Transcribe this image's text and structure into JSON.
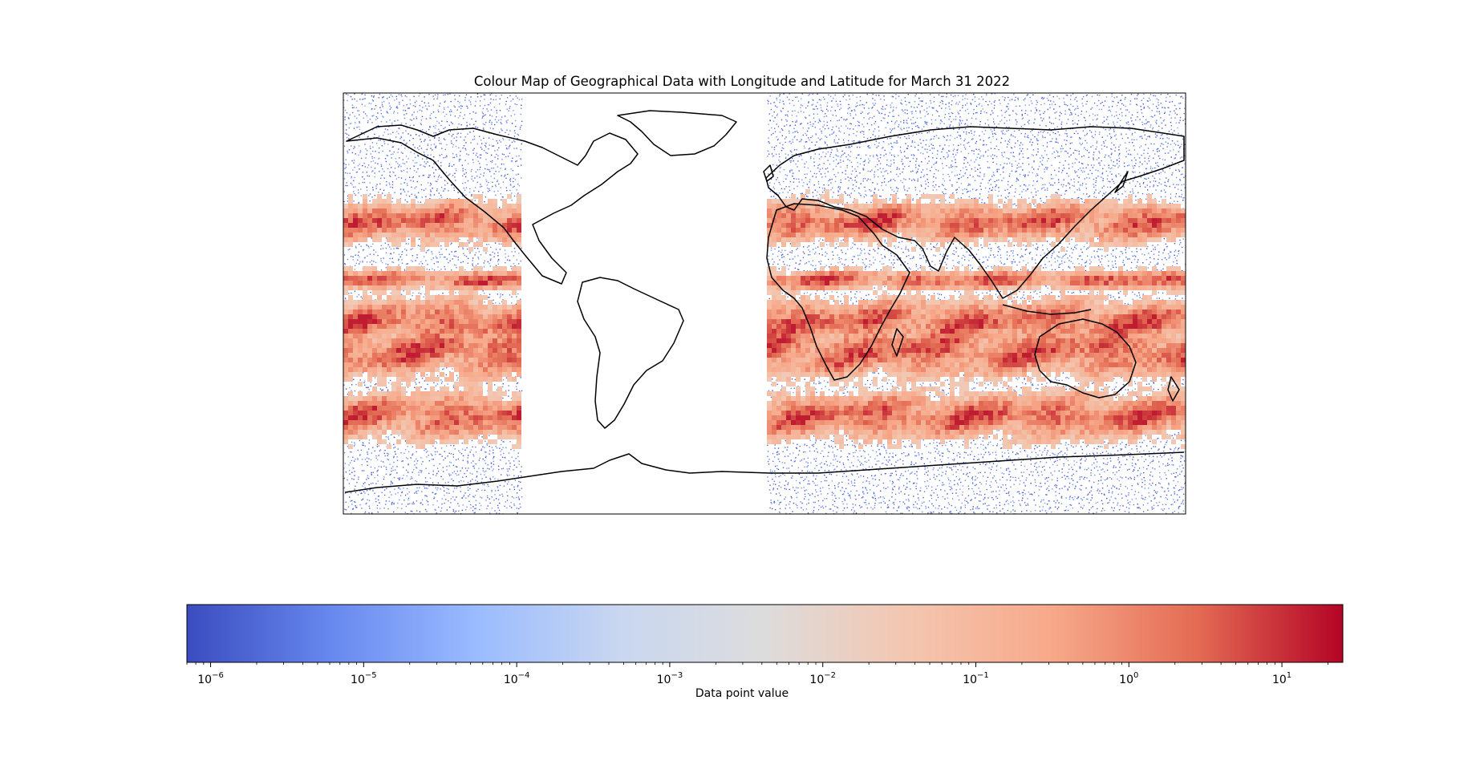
{
  "title": "Colour Map of Geographical Data with Longitude and Latitude for March 31 2022",
  "chart_data": {
    "type": "heatmap",
    "projection": "equirectangular",
    "title": "Colour Map of Geographical Data with Longitude and Latitude for March 31 2022",
    "lon_range": [
      -180,
      180
    ],
    "lat_range": [
      -90,
      90
    ],
    "no_data_lon_range": [
      -104,
      0
    ],
    "colormap": "coolwarm",
    "color_scale": "log",
    "colorbar": {
      "label": "Data point value",
      "range": [
        7e-07,
        25
      ],
      "ticks": [
        {
          "base": "10",
          "exp": "−6",
          "value": 1e-06
        },
        {
          "base": "10",
          "exp": "−5",
          "value": 1e-05
        },
        {
          "base": "10",
          "exp": "−4",
          "value": 0.0001
        },
        {
          "base": "10",
          "exp": "−3",
          "value": 0.001
        },
        {
          "base": "10",
          "exp": "−2",
          "value": 0.01
        },
        {
          "base": "10",
          "exp": "−1",
          "value": 0.1
        },
        {
          "base": "10",
          "exp": "0",
          "value": 1
        },
        {
          "base": "10",
          "exp": "1",
          "value": 10
        }
      ],
      "colors": [
        "#3b4cc0",
        "#6788ee",
        "#9abbff",
        "#c9d7f0",
        "#dddcdc",
        "#f3c6b0",
        "#f7a889",
        "#e36a53",
        "#b40426"
      ]
    },
    "high_value_bands": [
      {
        "lat": 10,
        "width": 5
      },
      {
        "lat": -8,
        "width": 12
      },
      {
        "lat": -20,
        "width": 14
      },
      {
        "lat": -48,
        "width": 12
      },
      {
        "lat": 35,
        "width": 10
      }
    ]
  }
}
